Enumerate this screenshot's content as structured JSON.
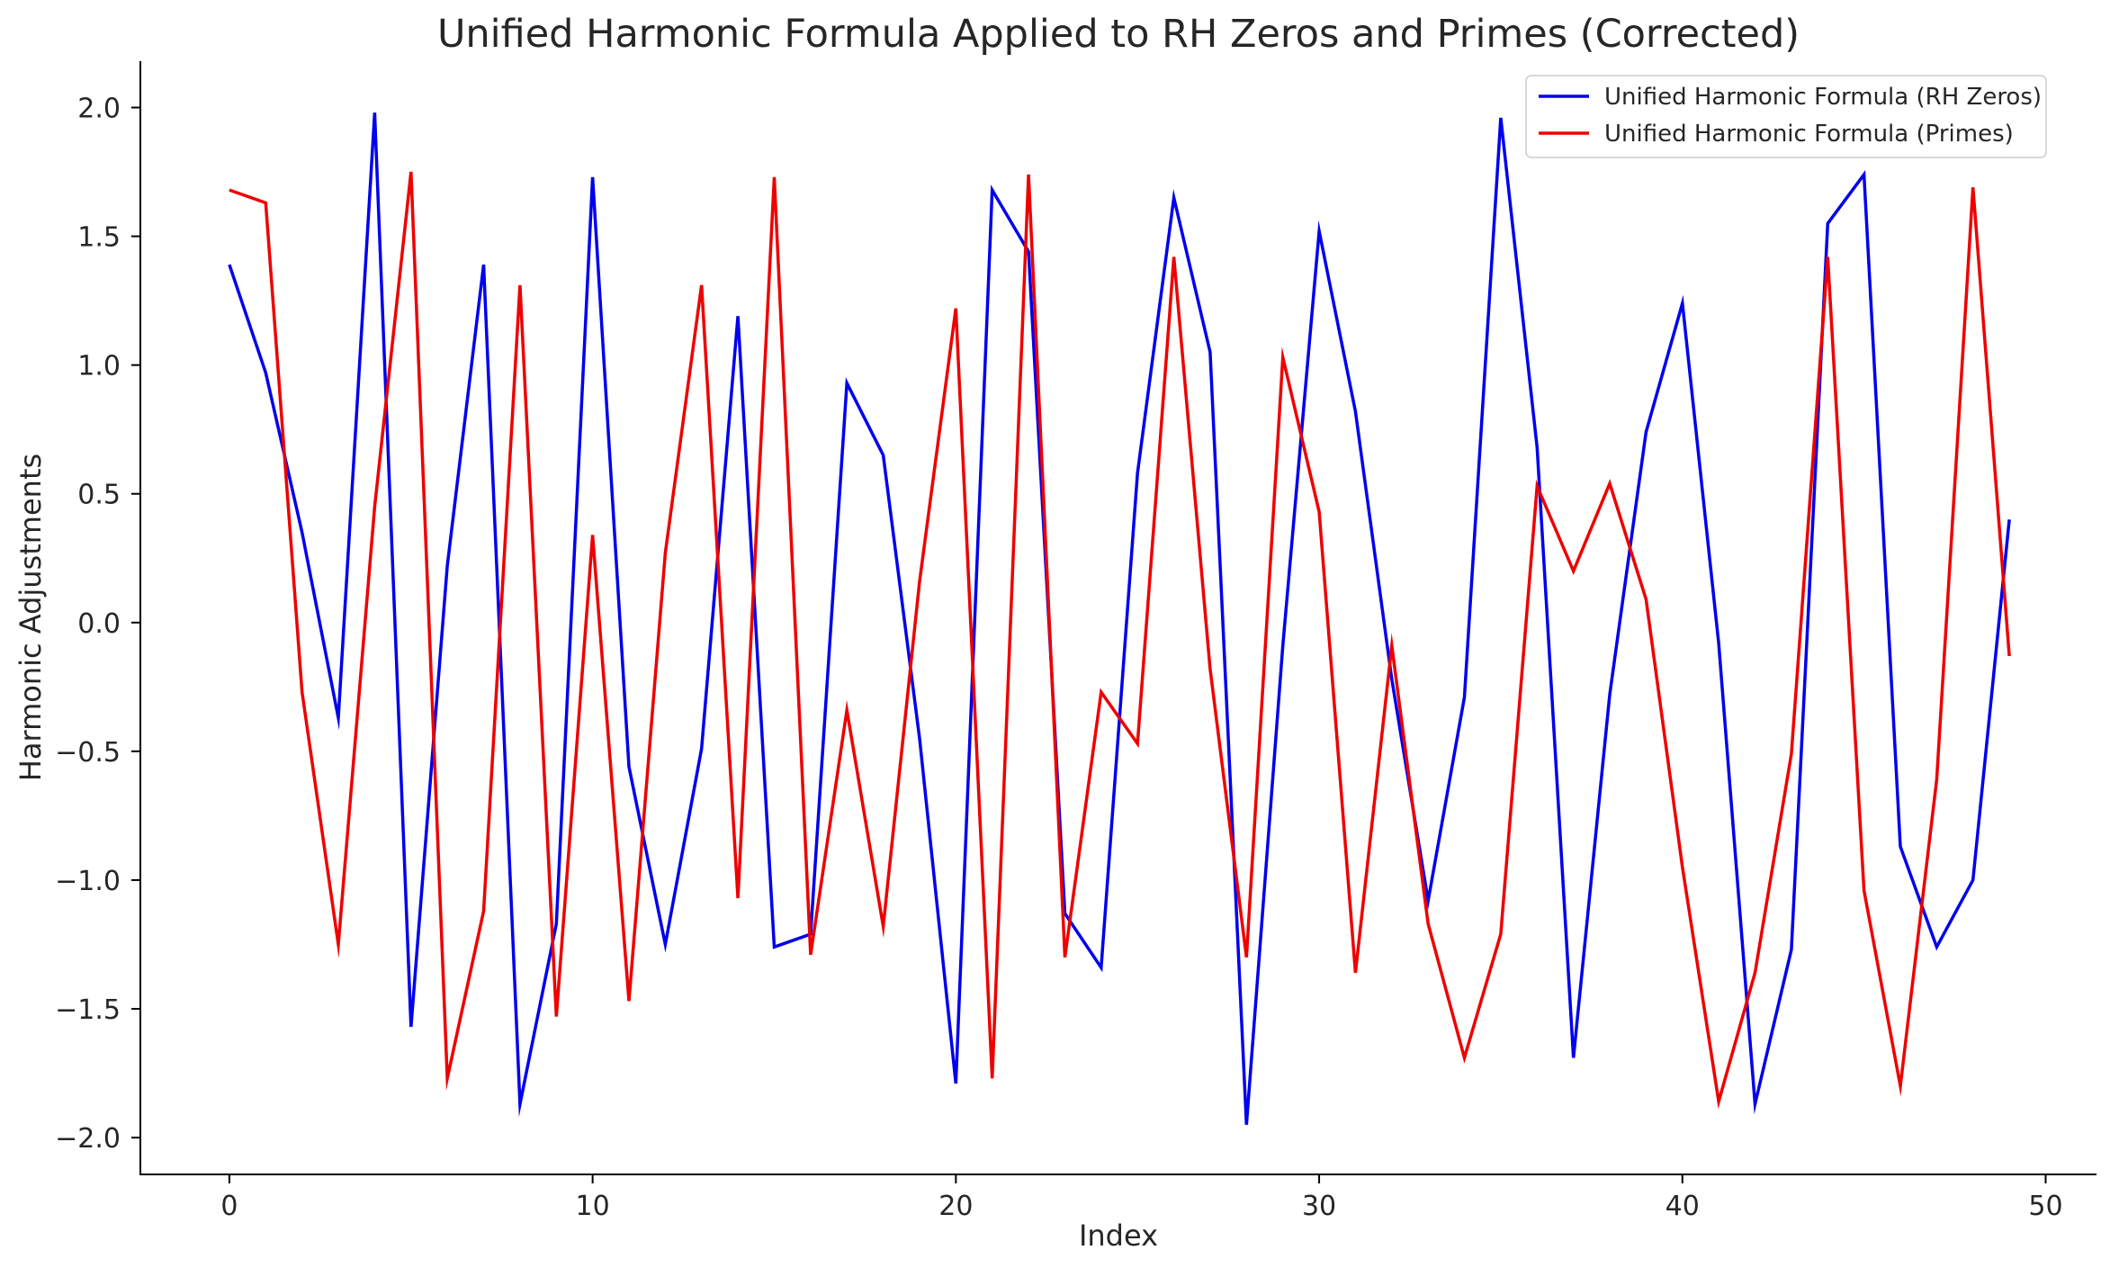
{
  "chart_data": {
    "type": "line",
    "title": "Unified Harmonic Formula Applied to RH Zeros and Primes (Corrected)",
    "xlabel": "Index",
    "ylabel": "Harmonic Adjustments",
    "xlim": [
      -2.45,
      51.4
    ],
    "ylim": [
      -2.143,
      2.18
    ],
    "xticks": [
      0,
      10,
      20,
      30,
      40,
      50
    ],
    "xtick_labels": [
      "0",
      "10",
      "20",
      "30",
      "40",
      "50"
    ],
    "yticks": [
      2.0,
      1.5,
      1.0,
      0.5,
      0.0,
      -0.5,
      -1.0,
      -1.5,
      -2.0
    ],
    "ytick_labels": [
      "2.0",
      "1.5",
      "1.0",
      "0.5",
      "0.0",
      "−0.5",
      "−1.0",
      "−1.5",
      "−2.0"
    ],
    "grid": false,
    "legend_position": "top-right",
    "x": [
      0,
      1,
      2,
      3,
      4,
      5,
      6,
      7,
      8,
      9,
      10,
      11,
      12,
      13,
      14,
      15,
      16,
      17,
      18,
      19,
      20,
      21,
      22,
      23,
      24,
      25,
      26,
      27,
      28,
      29,
      30,
      31,
      32,
      33,
      34,
      35,
      36,
      37,
      38,
      39,
      40,
      41,
      42,
      43,
      44,
      45,
      46,
      47,
      48,
      49
    ],
    "series": [
      {
        "name": "Unified Harmonic Formula (RH Zeros)",
        "color": "#0000ee",
        "values": [
          1.39,
          0.97,
          0.35,
          -0.37,
          1.98,
          -1.57,
          0.22,
          1.39,
          -1.87,
          -1.17,
          1.73,
          -0.56,
          -1.25,
          -0.49,
          1.19,
          -1.26,
          -1.21,
          0.93,
          0.65,
          -0.45,
          -1.79,
          1.68,
          1.44,
          -1.13,
          -1.34,
          0.58,
          1.65,
          1.05,
          -1.95,
          -0.09,
          1.52,
          0.82,
          -0.22,
          -1.08,
          -0.29,
          1.96,
          0.68,
          -1.69,
          -0.28,
          0.74,
          1.24,
          -0.08,
          -1.87,
          -1.27,
          1.55,
          1.74,
          -0.87,
          -1.26,
          -1.0,
          0.4
        ]
      },
      {
        "name": "Unified Harmonic Formula (Primes)",
        "color": "#ee0000",
        "values": [
          1.68,
          1.63,
          -0.27,
          -1.25,
          0.45,
          1.75,
          -1.77,
          -1.12,
          1.31,
          -1.53,
          0.34,
          -1.47,
          0.27,
          1.31,
          -1.07,
          1.73,
          -1.29,
          -0.34,
          -1.18,
          0.16,
          1.22,
          -1.77,
          1.74,
          -1.3,
          -0.27,
          -0.47,
          1.42,
          -0.18,
          -1.3,
          1.03,
          0.43,
          -1.36,
          -0.09,
          -1.17,
          -1.69,
          -1.21,
          0.53,
          0.2,
          0.54,
          0.09,
          -0.95,
          -1.86,
          -1.36,
          -0.51,
          1.42,
          -1.04,
          -1.8,
          -0.61,
          1.69,
          -0.13
        ]
      }
    ]
  }
}
